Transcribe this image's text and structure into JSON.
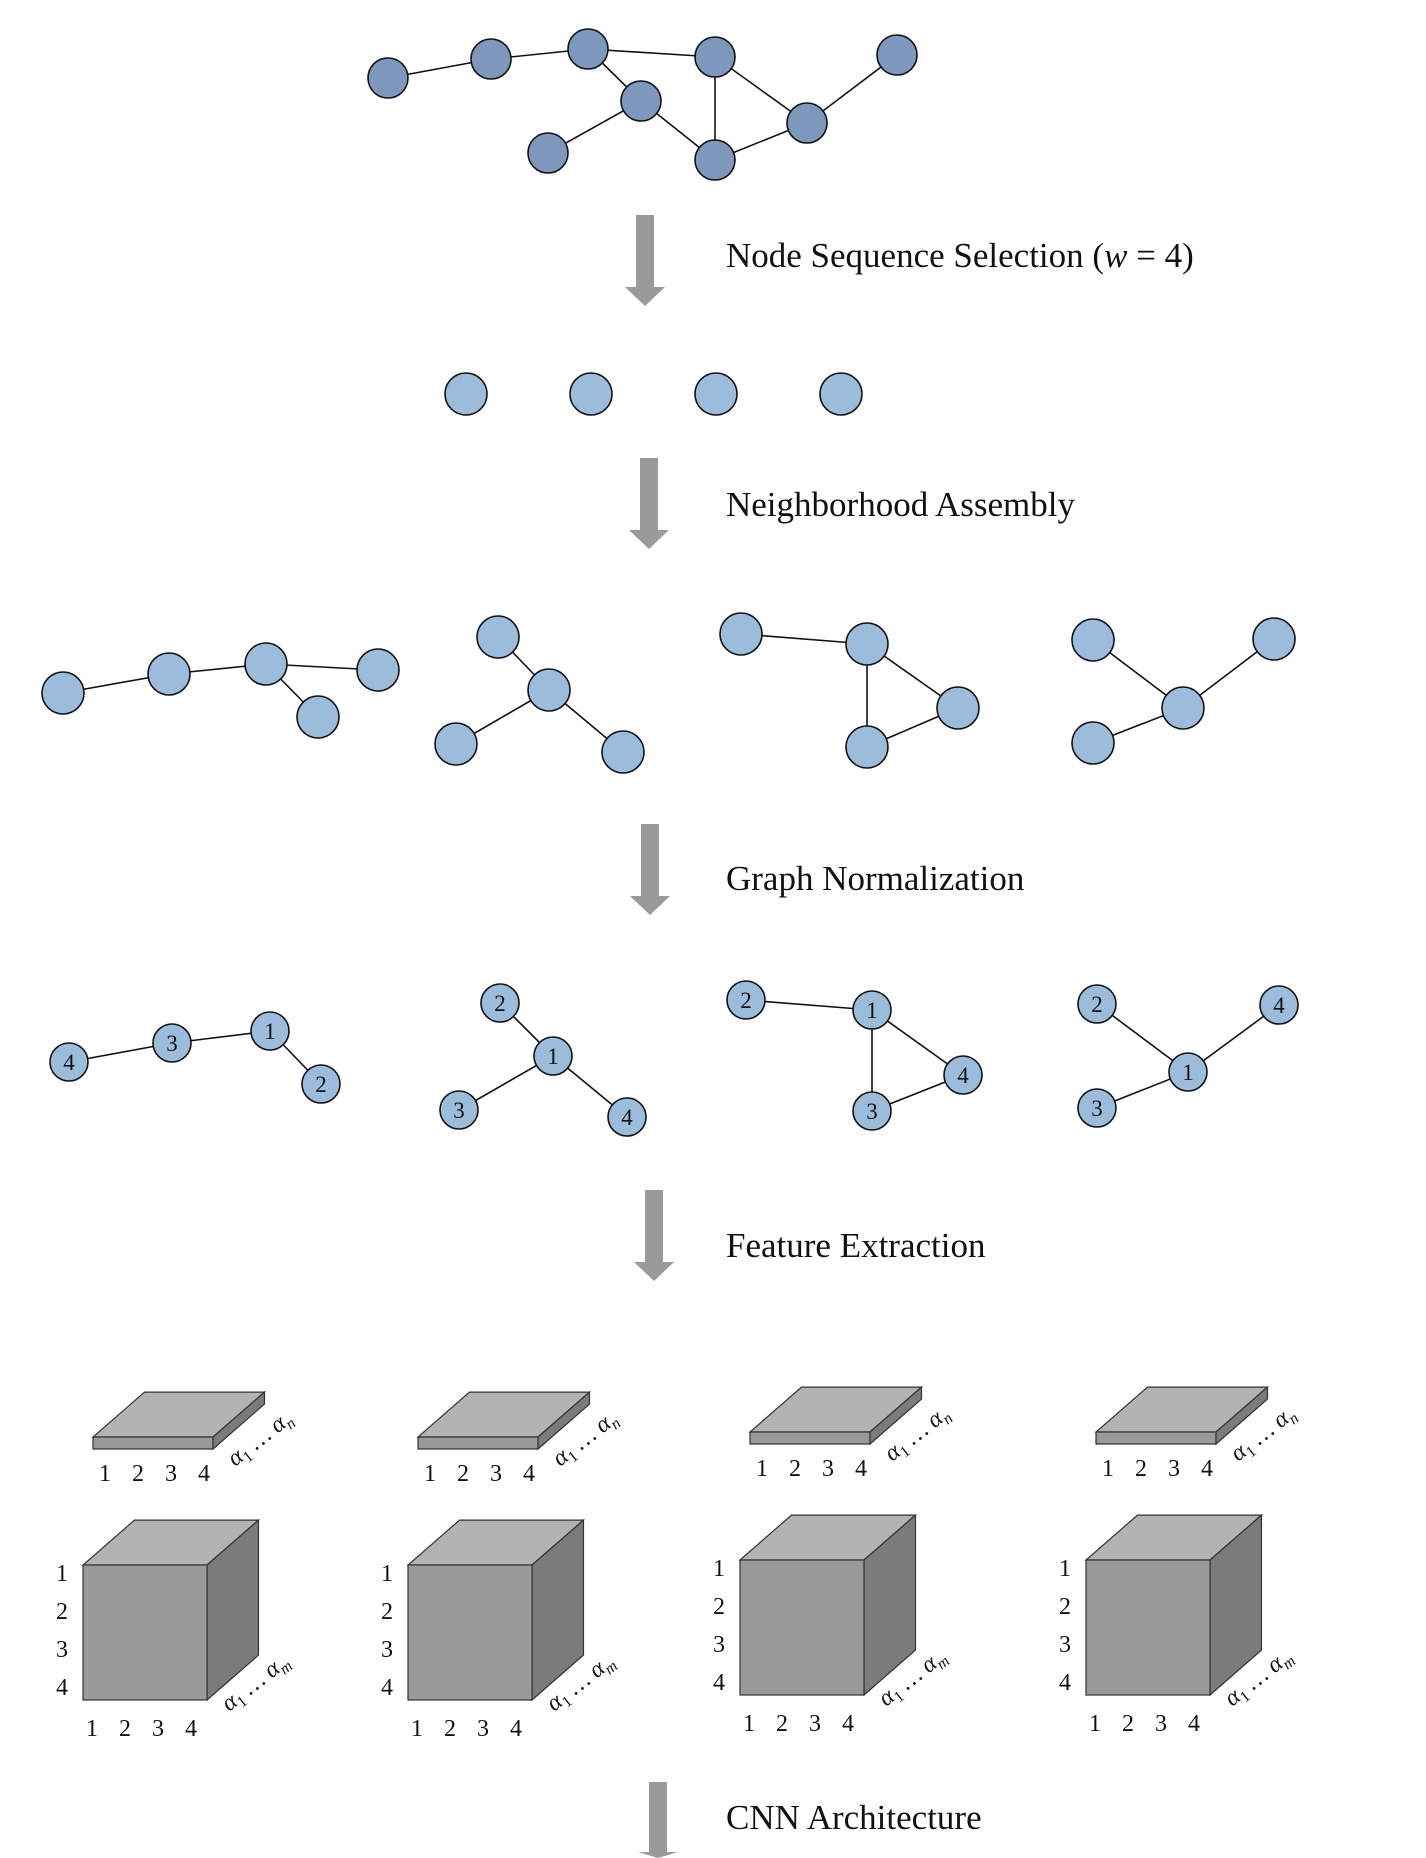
{
  "stages": {
    "selection": "Node Sequence Selection (",
    "selection_var": "w",
    "selection_tail": " = 4)",
    "assembly": "Neighborhood Assembly",
    "normalization": "Graph Normalization",
    "extraction": "Feature Extraction",
    "cnn": "CNN Architecture"
  },
  "normalized_labels": [
    [
      "4",
      "3",
      "1",
      "2"
    ],
    [
      "2",
      "1",
      "3",
      "4"
    ],
    [
      "2",
      "1",
      "3",
      "4"
    ],
    [
      "2",
      "4",
      "1",
      "3"
    ]
  ],
  "axis": {
    "cols": [
      "1",
      "2",
      "3",
      "4"
    ],
    "rows": [
      "1",
      "2",
      "3",
      "4"
    ],
    "node_attr": [
      "α",
      "1",
      " … α",
      "n"
    ],
    "edge_attr": [
      "α",
      "1",
      " … α",
      "m"
    ]
  },
  "colors": {
    "graph_node": "#7e97bd",
    "selected_node": "#9cbcdc",
    "arrow": "#9a9a98",
    "box_top": "#b3b3b1",
    "box_front": "#9a9a98",
    "box_side": "#7b7b79"
  }
}
